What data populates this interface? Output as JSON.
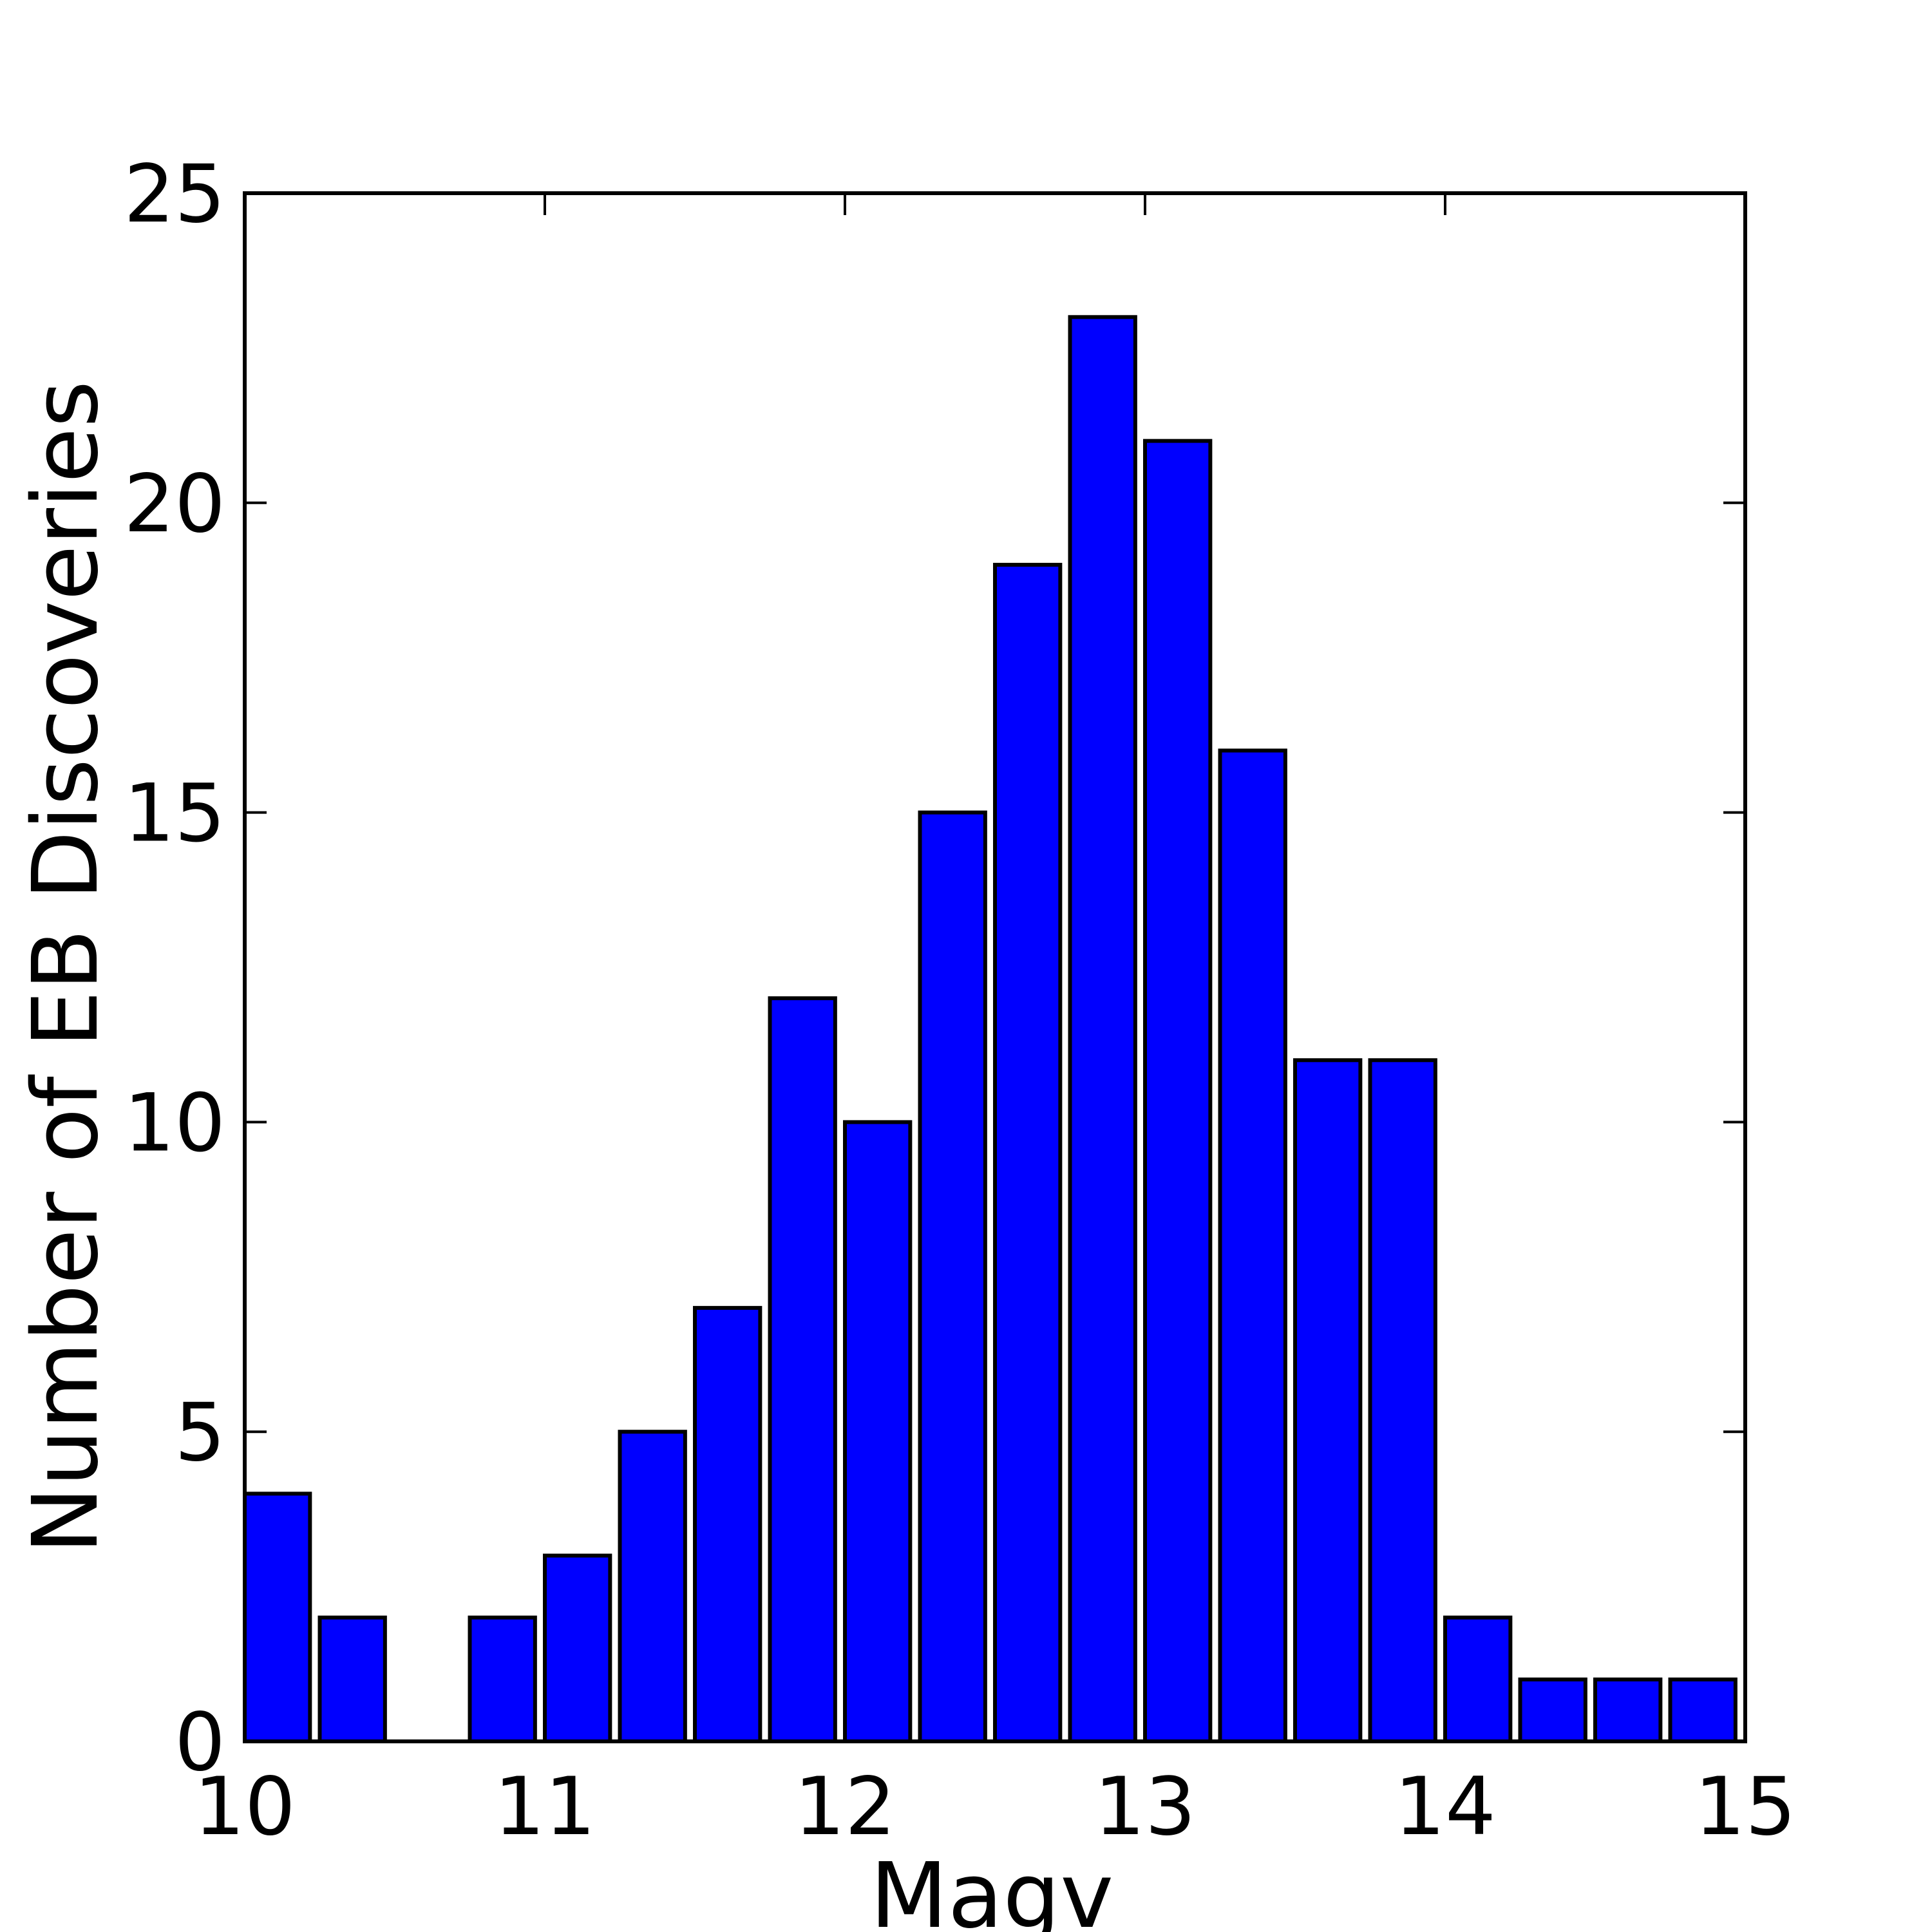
{
  "chart_data": {
    "type": "bar",
    "title": "",
    "xlabel": "Magv",
    "ylabel": "Number of EB Discoveries",
    "xlim": [
      10,
      15
    ],
    "ylim": [
      0,
      25
    ],
    "x_ticks": [
      10,
      11,
      12,
      13,
      14,
      15
    ],
    "y_ticks": [
      0,
      5,
      10,
      15,
      20,
      25
    ],
    "grid": false,
    "legend": "none",
    "bar_color": "#0000ff",
    "edge_color": "#000000",
    "bin_width": 0.25,
    "bar_width_fraction": 0.87,
    "bins": [
      10.0,
      10.25,
      10.5,
      10.75,
      11.0,
      11.25,
      11.5,
      11.75,
      12.0,
      12.25,
      12.5,
      12.75,
      13.0,
      13.25,
      13.5,
      13.75,
      14.0,
      14.25,
      14.5,
      14.75
    ],
    "values": [
      4,
      2,
      0,
      2,
      3,
      5,
      7,
      12,
      10,
      15,
      19,
      23,
      21,
      16,
      11,
      11,
      2,
      1,
      1,
      1
    ]
  }
}
